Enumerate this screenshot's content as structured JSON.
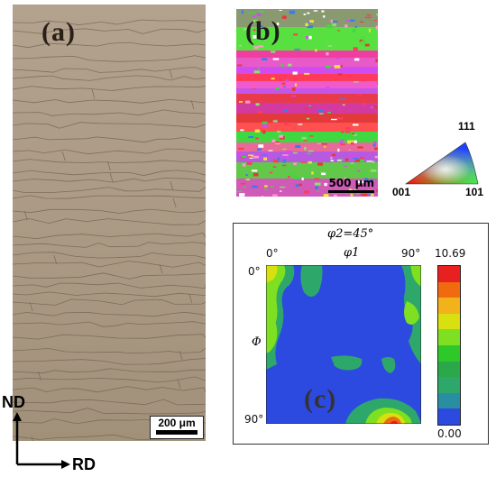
{
  "panels": {
    "a": {
      "letter": "(a)",
      "scale_bar": "200 μm"
    },
    "b": {
      "letter": "(b)",
      "scale_bar": "500 μm"
    },
    "c": {
      "letter": "(c)"
    }
  },
  "ipf": {
    "top": "111",
    "left": "001",
    "right": "101"
  },
  "odf": {
    "section": "φ2=45°",
    "x_axis": "φ1",
    "y_axis": "Φ",
    "x_ticks": [
      "0°",
      "90°"
    ],
    "y_ticks": [
      "0°",
      "90°"
    ],
    "colorbar_max": "10.69",
    "colorbar_min": "0.00",
    "colorbar_colors": [
      "#e82020",
      "#f06a10",
      "#f2b21a",
      "#d8e010",
      "#7ee020",
      "#2ec82a",
      "#2aa84a",
      "#2ea86a",
      "#2a8ea2",
      "#2d4ae0"
    ]
  },
  "axes": {
    "vertical": "ND",
    "horizontal": "RD"
  }
}
